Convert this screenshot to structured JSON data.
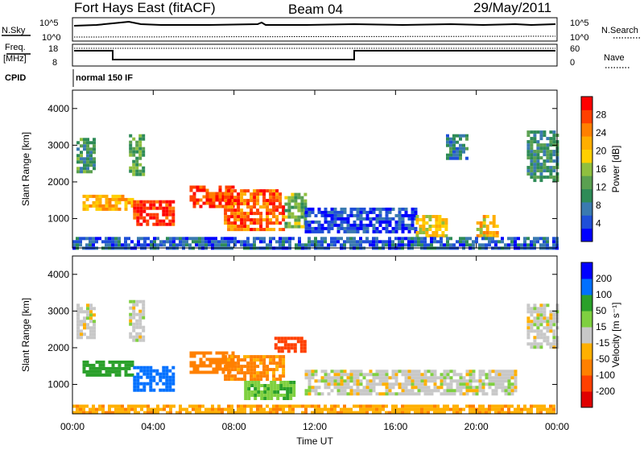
{
  "header": {
    "radar": "Fort Hays East (fitACF)",
    "beam": "Beam 04",
    "date": "29/May/2011"
  },
  "summary_panels": {
    "nsky_label": "N.Sky",
    "nsearch_label": "N.Search",
    "freq_label_1": "Freq.",
    "freq_label_2": "[MHz]",
    "nave_label": "Nave",
    "cpid_label": "CPID",
    "cpid_value": "normal 150 IF",
    "noise_ticks_left": [
      "10^5",
      "10^0"
    ],
    "noise_ticks_right": [
      "10^5",
      "10^0"
    ],
    "freq_ticks": [
      "18",
      "8"
    ],
    "nave_ticks": [
      "60",
      "0"
    ]
  },
  "axes": {
    "ylabel": "Slant Range [km]",
    "xlabel": "Time UT",
    "yticks": [
      "1000",
      "2000",
      "3000",
      "4000"
    ],
    "xticks": [
      "00:00",
      "04:00",
      "08:00",
      "12:00",
      "16:00",
      "20:00",
      "00:00"
    ]
  },
  "power_colorbar": {
    "label": "Power [dB]",
    "ticks": [
      "4",
      "8",
      "12",
      "16",
      "20",
      "24",
      "28"
    ],
    "colors": [
      "#0000ff",
      "#1f4fd8",
      "#3a7ab0",
      "#2e8b57",
      "#5aa050",
      "#8fbf3f",
      "#ffd000",
      "#ffae00",
      "#ff8000",
      "#ff4000",
      "#ff0000"
    ]
  },
  "velocity_colorbar": {
    "label": "Velocity [m s⁻¹]",
    "ticks": [
      "200",
      "100",
      "50",
      "15",
      "-15",
      "-50",
      "-100",
      "-200"
    ],
    "colors": [
      "#0000ff",
      "#0070ff",
      "#2aa02a",
      "#7fd040",
      "#c8c8c8",
      "#ffb000",
      "#ff8000",
      "#ff4000",
      "#e00000"
    ]
  },
  "chart_data": [
    {
      "type": "heatmap",
      "name": "power",
      "x_unit": "hours UT",
      "xlim": [
        0,
        24
      ],
      "y_unit": "km",
      "ylim": [
        200,
        4500
      ],
      "patches": [
        {
          "t0": 0.5,
          "t1": 3.0,
          "r0": 1250,
          "r1": 1650,
          "level": 0.7
        },
        {
          "t0": 3.0,
          "t1": 5.0,
          "r0": 800,
          "r1": 1500,
          "level": 0.95
        },
        {
          "t0": 0.2,
          "t1": 1.0,
          "r0": 2300,
          "r1": 3200,
          "level": 0.35
        },
        {
          "t0": 2.8,
          "t1": 3.5,
          "r0": 2200,
          "r1": 3300,
          "level": 0.4
        },
        {
          "t0": 5.8,
          "t1": 8.0,
          "r0": 1300,
          "r1": 1900,
          "level": 0.9
        },
        {
          "t0": 7.5,
          "t1": 10.5,
          "r0": 700,
          "r1": 1800,
          "level": 0.85
        },
        {
          "t0": 10.5,
          "t1": 11.5,
          "r0": 800,
          "r1": 1700,
          "level": 0.45
        },
        {
          "t0": 11.5,
          "t1": 17.0,
          "r0": 600,
          "r1": 1300,
          "level": 0.1
        },
        {
          "t0": 17.0,
          "t1": 18.5,
          "r0": 500,
          "r1": 1100,
          "level": 0.6
        },
        {
          "t0": 20.0,
          "t1": 21.0,
          "r0": 500,
          "r1": 1100,
          "level": 0.65
        },
        {
          "t0": 22.5,
          "t1": 24.0,
          "r0": 2000,
          "r1": 3400,
          "level": 0.3
        },
        {
          "t0": 18.5,
          "t1": 19.5,
          "r0": 2600,
          "r1": 3300,
          "level": 0.25
        },
        {
          "t0": 0.0,
          "t1": 24.0,
          "r0": 200,
          "r1": 500,
          "level": 0.15
        }
      ]
    },
    {
      "type": "heatmap",
      "name": "velocity",
      "x_unit": "hours UT",
      "xlim": [
        0,
        24
      ],
      "y_unit": "km",
      "ylim": [
        200,
        4500
      ],
      "patches": [
        {
          "t0": 0.5,
          "t1": 3.0,
          "r0": 1250,
          "r1": 1650,
          "vel": 80
        },
        {
          "t0": 3.0,
          "t1": 5.0,
          "r0": 800,
          "r1": 1500,
          "vel": 150
        },
        {
          "t0": 0.2,
          "t1": 1.0,
          "r0": 2300,
          "r1": 3200,
          "vel": 0
        },
        {
          "t0": 2.8,
          "t1": 3.5,
          "r0": 2200,
          "r1": 3300,
          "vel": 0
        },
        {
          "t0": 5.8,
          "t1": 8.0,
          "r0": 1300,
          "r1": 1900,
          "vel": -80
        },
        {
          "t0": 7.5,
          "t1": 10.5,
          "r0": 1100,
          "r1": 1800,
          "vel": -60
        },
        {
          "t0": 8.5,
          "t1": 11.0,
          "r0": 600,
          "r1": 1100,
          "vel": 40
        },
        {
          "t0": 10.0,
          "t1": 11.5,
          "r0": 1900,
          "r1": 2300,
          "vel": -150
        },
        {
          "t0": 11.5,
          "t1": 22.0,
          "r0": 700,
          "r1": 1400,
          "vel": 0
        },
        {
          "t0": 22.5,
          "t1": 24.0,
          "r0": 2000,
          "r1": 3200,
          "vel": 0
        },
        {
          "t0": 0.0,
          "t1": 24.0,
          "r0": 200,
          "r1": 450,
          "vel": -40
        }
      ]
    }
  ]
}
